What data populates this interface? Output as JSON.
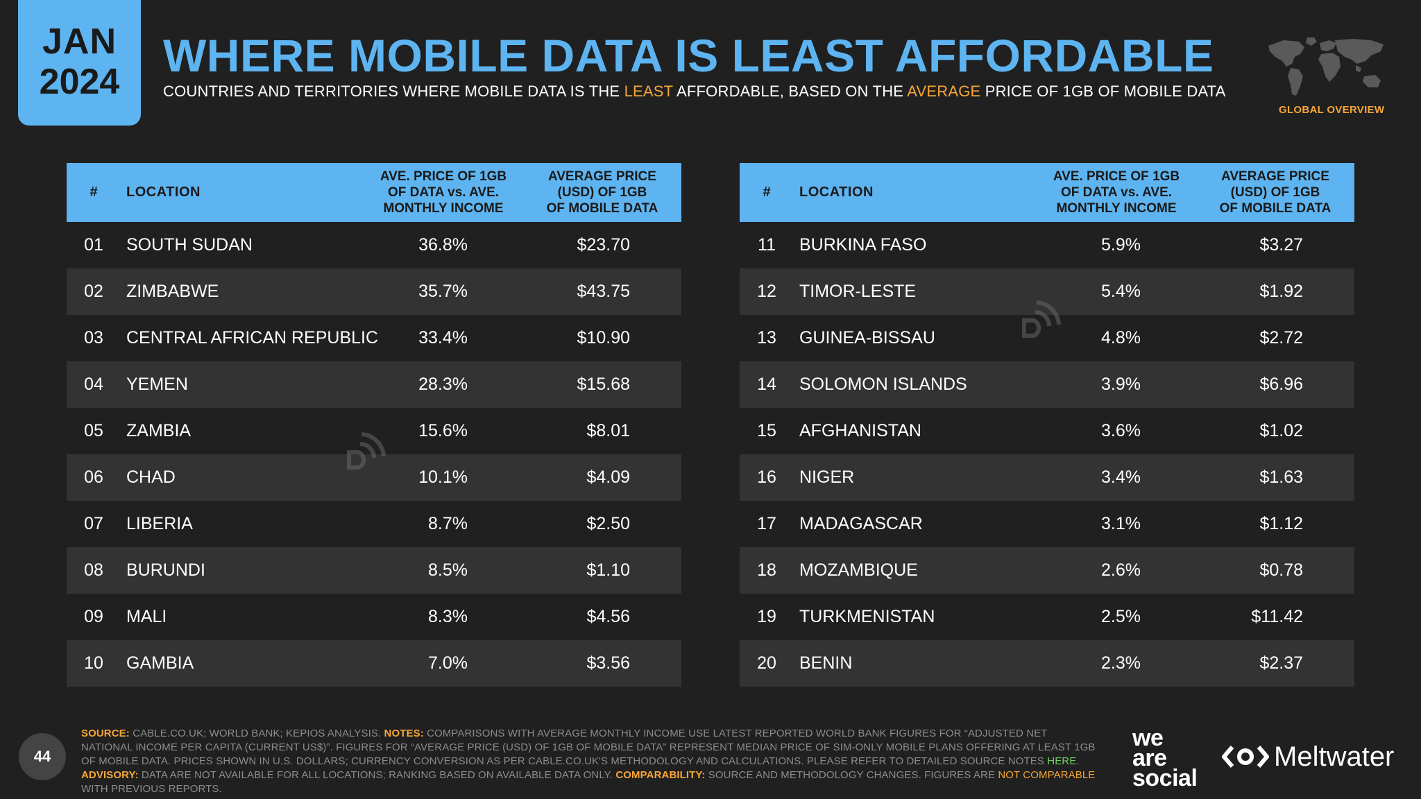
{
  "header": {
    "date_month": "JAN",
    "date_year": "2024",
    "title": "WHERE MOBILE DATA IS LEAST AFFORDABLE",
    "subtitle_part1": "COUNTRIES AND TERRITORIES WHERE MOBILE DATA IS THE ",
    "subtitle_hl1": "LEAST",
    "subtitle_part2": " AFFORDABLE, BASED ON THE ",
    "subtitle_hl2": "AVERAGE",
    "subtitle_part3": " PRICE OF 1GB OF MOBILE DATA",
    "section_label": "GLOBAL OVERVIEW"
  },
  "table_headers": {
    "num": "#",
    "location": "LOCATION",
    "pct_line1": "AVE. PRICE OF 1GB",
    "pct_line2": "OF DATA vs. AVE.",
    "pct_line3": "MONTHLY INCOME",
    "usd_line1": "AVERAGE PRICE",
    "usd_line2": "(USD) OF 1GB",
    "usd_line3": "OF MOBILE DATA"
  },
  "left_rows": [
    {
      "rank": "01",
      "location": "SOUTH SUDAN",
      "pct": "36.8%",
      "usd": "$23.70"
    },
    {
      "rank": "02",
      "location": "ZIMBABWE",
      "pct": "35.7%",
      "usd": "$43.75"
    },
    {
      "rank": "03",
      "location": "CENTRAL AFRICAN REPUBLIC",
      "pct": "33.4%",
      "usd": "$10.90"
    },
    {
      "rank": "04",
      "location": "YEMEN",
      "pct": "28.3%",
      "usd": "$15.68"
    },
    {
      "rank": "05",
      "location": "ZAMBIA",
      "pct": "15.6%",
      "usd": "$8.01"
    },
    {
      "rank": "06",
      "location": "CHAD",
      "pct": "10.1%",
      "usd": "$4.09"
    },
    {
      "rank": "07",
      "location": "LIBERIA",
      "pct": "8.7%",
      "usd": "$2.50"
    },
    {
      "rank": "08",
      "location": "BURUNDI",
      "pct": "8.5%",
      "usd": "$1.10"
    },
    {
      "rank": "09",
      "location": "MALI",
      "pct": "8.3%",
      "usd": "$4.56"
    },
    {
      "rank": "10",
      "location": "GAMBIA",
      "pct": "7.0%",
      "usd": "$3.56"
    }
  ],
  "right_rows": [
    {
      "rank": "11",
      "location": "BURKINA FASO",
      "pct": "5.9%",
      "usd": "$3.27"
    },
    {
      "rank": "12",
      "location": "TIMOR-LESTE",
      "pct": "5.4%",
      "usd": "$1.92"
    },
    {
      "rank": "13",
      "location": "GUINEA-BISSAU",
      "pct": "4.8%",
      "usd": "$2.72"
    },
    {
      "rank": "14",
      "location": "SOLOMON ISLANDS",
      "pct": "3.9%",
      "usd": "$6.96"
    },
    {
      "rank": "15",
      "location": "AFGHANISTAN",
      "pct": "3.6%",
      "usd": "$1.02"
    },
    {
      "rank": "16",
      "location": "NIGER",
      "pct": "3.4%",
      "usd": "$1.63"
    },
    {
      "rank": "17",
      "location": "MADAGASCAR",
      "pct": "3.1%",
      "usd": "$1.12"
    },
    {
      "rank": "18",
      "location": "MOZAMBIQUE",
      "pct": "2.6%",
      "usd": "$0.78"
    },
    {
      "rank": "19",
      "location": "TURKMENISTAN",
      "pct": "2.5%",
      "usd": "$11.42"
    },
    {
      "rank": "20",
      "location": "BENIN",
      "pct": "2.3%",
      "usd": "$2.37"
    }
  ],
  "footer": {
    "page_number": "44",
    "source_key": "SOURCE:",
    "source_text": " CABLE.CO.UK; WORLD BANK; KEPIOS ANALYSIS. ",
    "notes_key": "NOTES:",
    "notes_text": " COMPARISONS WITH AVERAGE MONTHLY INCOME USE LATEST REPORTED WORLD BANK FIGURES FOR “ADJUSTED NET NATIONAL INCOME PER CAPITA (CURRENT US$)”. FIGURES FOR “AVERAGE PRICE (USD) OF 1GB OF MOBILE DATA” REPRESENT MEDIAN PRICE OF SIM-ONLY MOBILE PLANS OFFERING AT LEAST 1GB OF MOBILE DATA. PRICES SHOWN IN U.S. DOLLARS; CURRENCY CONVERSION AS PER CABLE.CO.UK'S METHODOLOGY AND CALCULATIONS. PLEASE REFER TO DETAILED SOURCE NOTES ",
    "here_link": "HERE",
    "after_here": ". ",
    "advisory_key": "ADVISORY:",
    "advisory_text": " DATA ARE NOT AVAILABLE FOR ALL LOCATIONS; RANKING BASED ON AVAILABLE DATA ONLY. ",
    "comparability_key": "COMPARABILITY:",
    "comparability_text": " SOURCE AND METHODOLOGY CHANGES. FIGURES ARE ",
    "not_comparable": "NOT COMPARABLE",
    "comparability_end": " WITH PREVIOUS REPORTS.",
    "brand_was_1": "we",
    "brand_was_2": "are",
    "brand_was_3": "social",
    "brand_meltwater": "Meltwater"
  },
  "colors": {
    "accent_blue": "#5db4f1",
    "accent_orange": "#f6a637",
    "link_green": "#72d36a",
    "background": "#202020",
    "row_alt": "#333333"
  }
}
